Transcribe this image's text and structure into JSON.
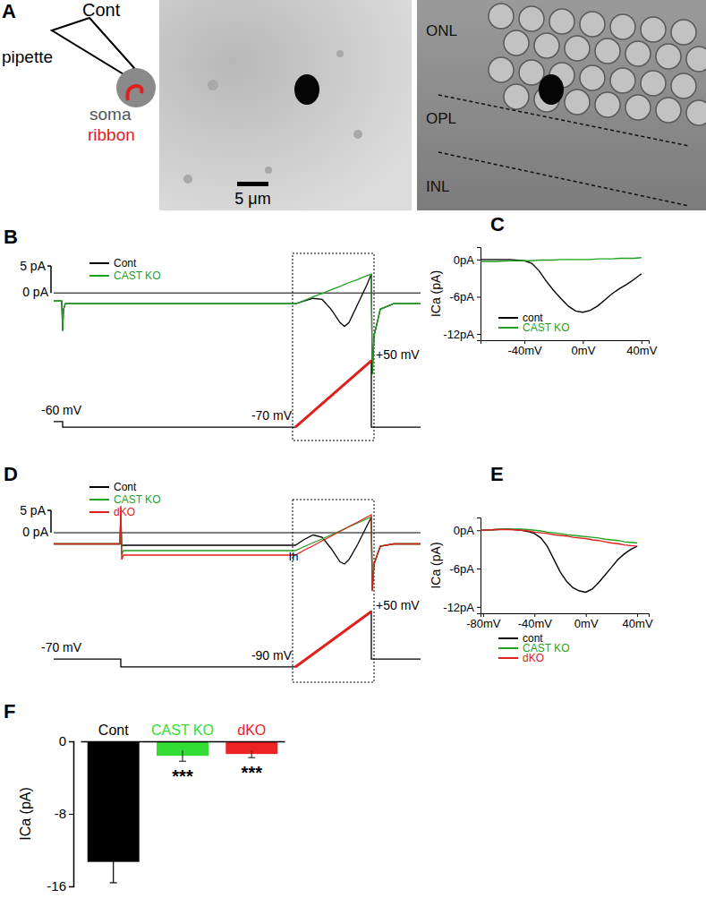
{
  "panel_labels": [
    "A",
    "B",
    "C",
    "D",
    "E",
    "F"
  ],
  "panel_a": {
    "schematic_labels": [
      "Cont",
      "pipette",
      "soma",
      "ribbon"
    ],
    "layer_labels": [
      "ONL",
      "OPL",
      "INL"
    ],
    "scale_bar": {
      "value": 5,
      "label": "5 μm"
    }
  },
  "chart_data": [
    {
      "type": "line",
      "tick_labels": false,
      "legend": "upper left",
      "x": [
        0,
        18,
        20,
        22,
        26,
        40,
        100,
        200,
        300,
        400,
        500,
        540,
        560,
        580,
        600,
        620,
        640,
        650,
        660,
        680,
        700,
        710,
        712,
        716,
        730,
        760,
        790,
        820
      ],
      "xlim": [
        0,
        820
      ],
      "ylim": [
        -27,
        7
      ],
      "y2lim": [
        -91,
        241
      ],
      "reference": {
        "value": 0,
        "label": "0 pA"
      },
      "scale_bar": {
        "value": 5,
        "label": "5 pA"
      },
      "series": [
        {
          "name": "Cont",
          "color": "#000000",
          "values": [
            -1.5,
            -1.5,
            -7,
            -3,
            -2,
            -2,
            -2,
            -2,
            -2,
            -2,
            -2,
            -2,
            -1.5,
            -1,
            -1.2,
            -3,
            -5.5,
            -6.2,
            -5.5,
            -2,
            1.5,
            3.5,
            -15,
            -8,
            -3,
            -2,
            -2,
            -2
          ]
        },
        {
          "name": "CAST KO",
          "color": "#1fa01f",
          "values": [
            -1.5,
            -1.5,
            -7,
            -3,
            -2,
            -2,
            -2,
            -2,
            -2,
            -2,
            -2,
            -2,
            -1.4,
            -0.7,
            -0.1,
            0.6,
            1.2,
            1.6,
            1.9,
            2.5,
            3.2,
            3.5,
            -15,
            -8,
            -3,
            -2,
            -2,
            -2
          ]
        }
      ],
      "protocol": {
        "axis": "y2",
        "color": "#000000",
        "x": [
          0,
          20,
          20,
          540,
          710,
          710,
          820
        ],
        "values": [
          -60,
          -60,
          -70,
          -70,
          50,
          -70,
          -70
        ],
        "labels": [
          {
            "value": -60,
            "label": "-60 mV"
          },
          {
            "value": -70,
            "label": "-70 mV"
          },
          {
            "value": 50,
            "label": "+50 mV"
          }
        ]
      },
      "ramp": {
        "axis": "y2",
        "color": "#e0201c",
        "x": [
          540,
          710
        ],
        "values": [
          -70,
          50
        ]
      }
    },
    {
      "type": "line",
      "legend": "lower left",
      "x": [
        -70,
        -60,
        -50,
        -40,
        -35,
        -30,
        -25,
        -20,
        -15,
        -10,
        -5,
        0,
        5,
        10,
        15,
        20,
        25,
        30,
        35,
        40
      ],
      "xlim": [
        -70,
        45
      ],
      "ylim": [
        -13,
        2
      ],
      "xticks": [
        {
          "value": -40,
          "label": "-40mV"
        },
        {
          "value": 0,
          "label": "0mV"
        },
        {
          "value": 40,
          "label": "40mV"
        }
      ],
      "yticks": [
        {
          "value": 0,
          "label": "0pA"
        },
        {
          "value": -6,
          "label": "-6pA"
        },
        {
          "value": -12,
          "label": "-12pA"
        }
      ],
      "y_label": "ICa (pA)",
      "series": [
        {
          "name": "cont",
          "color": "#000000",
          "values": [
            0,
            0,
            0,
            -0.2,
            -0.6,
            -1.8,
            -3.5,
            -5,
            -6.3,
            -7.5,
            -8.3,
            -8.5,
            -8.2,
            -7.5,
            -6.5,
            -5.5,
            -4.7,
            -4,
            -3.2,
            -2.3
          ]
        },
        {
          "name": "CAST KO",
          "color": "#1fa01f",
          "values": [
            -0.3,
            -0.3,
            -0.2,
            -0.2,
            -0.2,
            -0.1,
            -0.1,
            -0.1,
            0,
            0,
            0,
            0,
            0,
            0.1,
            0.1,
            0.1,
            0.2,
            0.2,
            0.2,
            0.3
          ]
        }
      ]
    },
    {
      "type": "line",
      "tick_labels": false,
      "legend": "upper left",
      "x": [
        0,
        100,
        148,
        150,
        152,
        156,
        170,
        200,
        300,
        400,
        500,
        540,
        560,
        580,
        600,
        620,
        640,
        650,
        660,
        680,
        700,
        710,
        712,
        716,
        730,
        760,
        790,
        820
      ],
      "xlim": [
        0,
        820
      ],
      "ylim": [
        -33,
        7
      ],
      "y2lim": [
        -124,
        328
      ],
      "reference": {
        "value": 0,
        "label": "0 pA"
      },
      "scale_bar": {
        "value": 5,
        "label": "5 pA"
      },
      "annotation": "Ih",
      "series": [
        {
          "name": "Cont",
          "color": "#000000",
          "values": [
            -2.5,
            -2.5,
            -2.5,
            4,
            -3,
            -2.8,
            -2.8,
            -2.8,
            -2.8,
            -2.8,
            -2.8,
            -2.8,
            -1.5,
            -0.5,
            -1,
            -3.5,
            -6.5,
            -7,
            -6,
            -2.5,
            1.5,
            3.5,
            -13,
            -7,
            -3,
            -2.5,
            -2.5,
            -2.5
          ]
        },
        {
          "name": "CAST KO",
          "color": "#1fa01f",
          "values": [
            -2.5,
            -2.5,
            -2.5,
            4,
            -5,
            -4,
            -4,
            -4,
            -4,
            -4,
            -4,
            -4,
            -3.1,
            -2.2,
            -1.4,
            -0.5,
            0.4,
            0.9,
            1.3,
            2.2,
            3.1,
            3.5,
            -13,
            -7,
            -3,
            -2.5,
            -2.5,
            -2.5
          ]
        },
        {
          "name": "dKO",
          "color": "#e0201c",
          "values": [
            -2.5,
            -2.5,
            -2.5,
            6,
            -6,
            -5,
            -5,
            -5,
            -5,
            -5,
            -5,
            -5,
            -3.9,
            -2.9,
            -1.8,
            -0.8,
            0.3,
            0.8,
            1.4,
            2.4,
            3.5,
            4,
            -13,
            -7,
            -3,
            -2.5,
            -2.5,
            -2.5
          ]
        }
      ],
      "protocol": {
        "axis": "y2",
        "color": "#000000",
        "x": [
          0,
          150,
          150,
          540,
          710,
          710,
          820
        ],
        "values": [
          -70,
          -70,
          -90,
          -90,
          50,
          -70,
          -70
        ],
        "labels": [
          {
            "value": -70,
            "label": "-70 mV"
          },
          {
            "value": -90,
            "label": "-90 mV"
          },
          {
            "value": 50,
            "label": "+50 mV"
          }
        ]
      },
      "ramp": {
        "axis": "y2",
        "color": "#e0201c",
        "x": [
          540,
          710
        ],
        "values": [
          -90,
          50
        ]
      }
    },
    {
      "type": "line",
      "legend": "below",
      "x": [
        -82,
        -80,
        -70,
        -60,
        -50,
        -45,
        -40,
        -35,
        -30,
        -25,
        -20,
        -15,
        -10,
        -5,
        0,
        5,
        10,
        15,
        20,
        25,
        30,
        35,
        40
      ],
      "xlim": [
        -82,
        49
      ],
      "ylim": [
        -13,
        2
      ],
      "xticks": [
        {
          "value": -80,
          "label": "-80mV"
        },
        {
          "value": -40,
          "label": "-40mV"
        },
        {
          "value": 0,
          "label": "0mV"
        },
        {
          "value": 40,
          "label": "40mV"
        }
      ],
      "yticks": [
        {
          "value": 0,
          "label": "0pA"
        },
        {
          "value": -6,
          "label": "-6pA"
        },
        {
          "value": -12,
          "label": "-12pA"
        }
      ],
      "y_label": "ICa (pA)",
      "series": [
        {
          "name": "cont",
          "color": "#000000",
          "values": [
            0,
            0,
            0.1,
            0.2,
            0,
            -0.2,
            -0.5,
            -1.2,
            -2.5,
            -4.5,
            -6.5,
            -8,
            -9,
            -9.5,
            -9.7,
            -9.2,
            -8.2,
            -7,
            -5.8,
            -4.6,
            -3.7,
            -3,
            -2.5
          ]
        },
        {
          "name": "CAST KO",
          "color": "#1fa01f",
          "values": [
            0,
            0,
            0.1,
            0.2,
            0.2,
            0.1,
            0,
            -0.1,
            -0.3,
            -0.4,
            -0.5,
            -0.7,
            -0.8,
            -0.9,
            -1,
            -1.1,
            -1.2,
            -1.4,
            -1.5,
            -1.6,
            -1.8,
            -1.9,
            -2
          ]
        },
        {
          "name": "dKO",
          "color": "#e0201c",
          "values": [
            0,
            0,
            0.1,
            0.1,
            0,
            -0.1,
            -0.3,
            -0.4,
            -0.5,
            -0.7,
            -0.8,
            -0.9,
            -1.1,
            -1.2,
            -1.3,
            -1.5,
            -1.6,
            -1.8,
            -2,
            -2.1,
            -2.3,
            -2.4,
            -2.5
          ]
        }
      ]
    },
    {
      "type": "bar",
      "categories": [
        "Cont",
        "CAST KO",
        "dKO"
      ],
      "values": [
        -13.3,
        -1.6,
        -1.4
      ],
      "errors": [
        2.3,
        0.6,
        0.4
      ],
      "colors": [
        "#000000",
        "#33dd33",
        "#ee2222"
      ],
      "ylim": [
        -16,
        0
      ],
      "yticks": [
        0,
        -8,
        -16
      ],
      "y_label": "ICa (pA)",
      "significance": [
        null,
        "***",
        "***"
      ]
    }
  ]
}
